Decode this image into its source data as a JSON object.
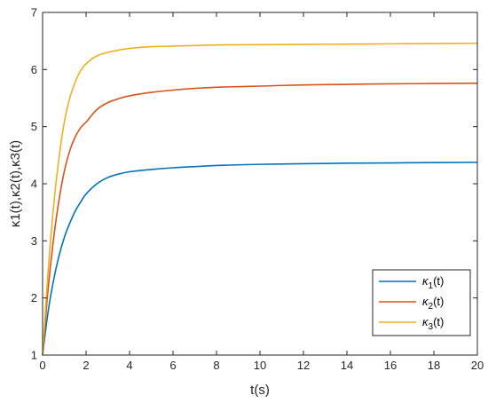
{
  "chart_data": {
    "type": "line",
    "title": "",
    "xlabel": "t(s)",
    "ylabel": "κ1(t),κ2(t),κ3(t)",
    "xlim": [
      0,
      20
    ],
    "ylim": [
      1,
      7
    ],
    "xticks": [
      0,
      2,
      4,
      6,
      8,
      10,
      12,
      14,
      16,
      18,
      20
    ],
    "yticks": [
      1,
      2,
      3,
      4,
      5,
      6,
      7
    ],
    "grid": false,
    "legend_position": "bottom-right",
    "x": [
      0,
      0.25,
      0.5,
      0.75,
      1,
      1.25,
      1.5,
      1.75,
      2,
      2.5,
      3,
      3.5,
      4,
      5,
      6,
      7,
      8,
      10,
      12,
      14,
      16,
      18,
      20
    ],
    "series": [
      {
        "name": "κ1(t)",
        "legend_base": "κ",
        "legend_sub": "1",
        "legend_suffix": "(t)",
        "color": "#0072BD",
        "values": [
          1.0,
          1.75,
          2.3,
          2.73,
          3.06,
          3.31,
          3.52,
          3.68,
          3.82,
          4.0,
          4.11,
          4.17,
          4.21,
          4.25,
          4.28,
          4.3,
          4.32,
          4.34,
          4.35,
          4.36,
          4.365,
          4.37,
          4.375
        ]
      },
      {
        "name": "κ2(t)",
        "legend_base": "κ",
        "legend_sub": "2",
        "legend_suffix": "(t)",
        "color": "#D95319",
        "values": [
          1.0,
          2.14,
          3.02,
          3.7,
          4.22,
          4.58,
          4.82,
          4.98,
          5.08,
          5.3,
          5.42,
          5.49,
          5.54,
          5.6,
          5.64,
          5.67,
          5.69,
          5.71,
          5.73,
          5.74,
          5.75,
          5.755,
          5.76
        ]
      },
      {
        "name": "κ3(t)",
        "legend_base": "κ",
        "legend_sub": "3",
        "legend_suffix": "(t)",
        "color": "#EDB120",
        "values": [
          1.0,
          2.45,
          3.58,
          4.44,
          5.08,
          5.5,
          5.78,
          5.98,
          6.1,
          6.24,
          6.3,
          6.34,
          6.37,
          6.4,
          6.41,
          6.42,
          6.43,
          6.435,
          6.44,
          6.445,
          6.45,
          6.455,
          6.46
        ]
      }
    ]
  }
}
